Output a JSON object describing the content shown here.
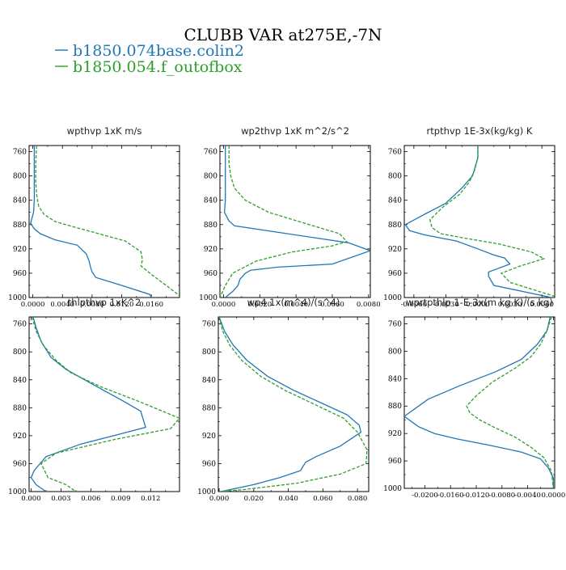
{
  "figure": {
    "title": "CLUBB VAR at275E,-7N",
    "legend": [
      {
        "label": "b1850.074base.colin2",
        "color": "#1f77b4",
        "style": "solid"
      },
      {
        "label": "b1850.054.f_outofbox",
        "color": "#2ca02c",
        "style": "dashed"
      }
    ]
  },
  "chart_data": [
    {
      "type": "line",
      "title": "wpthvp   1xK m/s",
      "ylim": [
        1000,
        750
      ],
      "yticks": [
        760,
        800,
        840,
        880,
        920,
        960,
        1000
      ],
      "xlim": [
        -0.0005,
        0.0198
      ],
      "xticks": [
        0.0,
        0.004,
        0.008,
        0.012,
        0.016
      ],
      "xticklabels": [
        "0.0000",
        "0.0040",
        "0.0080",
        "0.0120",
        "0.0160"
      ],
      "series": [
        {
          "name": "b1850.074base.colin2",
          "points": [
            [
              0.0002,
              750
            ],
            [
              0.0002,
              760
            ],
            [
              0.0002,
              780
            ],
            [
              0.0002,
              800
            ],
            [
              0.0002,
              820
            ],
            [
              0.0002,
              840
            ],
            [
              0.0001,
              860
            ],
            [
              -0.0003,
              878
            ],
            [
              0.0002,
              887
            ],
            [
              0.001,
              895
            ],
            [
              0.003,
              905
            ],
            [
              0.006,
              914
            ],
            [
              0.0072,
              928
            ],
            [
              0.0076,
              940
            ],
            [
              0.0078,
              950
            ],
            [
              0.008,
              958
            ],
            [
              0.0085,
              967
            ],
            [
              0.012,
              980
            ],
            [
              0.0158,
              995
            ],
            [
              0.016,
              1000
            ]
          ]
        },
        {
          "name": "b1850.054.f_outofbox",
          "points": [
            [
              0.0005,
              750
            ],
            [
              0.0004,
              780
            ],
            [
              0.0004,
              810
            ],
            [
              0.0005,
              830
            ],
            [
              0.0008,
              850
            ],
            [
              0.0015,
              863
            ],
            [
              0.003,
              875
            ],
            [
              0.005,
              882
            ],
            [
              0.008,
              892
            ],
            [
              0.0125,
              907
            ],
            [
              0.0146,
              925
            ],
            [
              0.0148,
              938
            ],
            [
              0.0146,
              948
            ],
            [
              0.016,
              962
            ],
            [
              0.018,
              980
            ],
            [
              0.0198,
              997
            ]
          ]
        }
      ]
    },
    {
      "type": "line",
      "title": "wp2thvp   1xK m^2/s^2",
      "ylim": [
        1000,
        750
      ],
      "yticks": [
        760,
        800,
        840,
        880,
        920,
        960,
        1000
      ],
      "xlim": [
        -0.0002,
        0.0081
      ],
      "xticks": [
        0.0,
        0.002,
        0.004,
        0.006,
        0.008
      ],
      "xticklabels": [
        "0.0000",
        "0.0020",
        "0.0040",
        "0.0060",
        "0.0080"
      ],
      "series": [
        {
          "name": "b1850.074base.colin2",
          "points": [
            [
              0.0001,
              750
            ],
            [
              0.0001,
              780
            ],
            [
              0.0001,
              810
            ],
            [
              0.0001,
              840
            ],
            [
              5e-05,
              860
            ],
            [
              0.0003,
              874
            ],
            [
              0.0006,
              882
            ],
            [
              0.0069,
              910
            ],
            [
              0.0081,
              923
            ],
            [
              0.006,
              945
            ],
            [
              0.003,
              950
            ],
            [
              0.0015,
              955
            ],
            [
              0.0012,
              960
            ],
            [
              0.0009,
              970
            ],
            [
              0.0008,
              980
            ],
            [
              0.0005,
              990
            ],
            [
              0.0001,
              1000
            ]
          ]
        },
        {
          "name": "b1850.054.f_outofbox",
          "points": [
            [
              0.0003,
              750
            ],
            [
              0.0003,
              780
            ],
            [
              0.0004,
              800
            ],
            [
              0.0006,
              820
            ],
            [
              0.0012,
              840
            ],
            [
              0.0025,
              860
            ],
            [
              0.0045,
              878
            ],
            [
              0.0064,
              895
            ],
            [
              0.0068,
              908
            ],
            [
              0.006,
              915
            ],
            [
              0.0038,
              925
            ],
            [
              0.0018,
              940
            ],
            [
              0.0005,
              960
            ],
            [
              0.0001,
              980
            ],
            [
              -0.0002,
              1000
            ]
          ]
        }
      ]
    },
    {
      "type": "line",
      "title": "rtpthvp   1E-3x(kg/kg) K",
      "ylim": [
        1000,
        750
      ],
      "yticks": [
        760,
        800,
        840,
        880,
        920,
        960,
        1000
      ],
      "xlim": [
        -0.0069,
        0.0072
      ],
      "xticks": [
        -0.006,
        -0.003,
        0.0,
        0.003,
        0.006
      ],
      "xticklabels": [
        "-0.0060",
        "-0.0030",
        "0.0000",
        "0.0030",
        "0.0060"
      ],
      "series": [
        {
          "name": "b1850.074base.colin2",
          "points": [
            [
              0.0,
              750
            ],
            [
              0.0,
              770
            ],
            [
              -0.0005,
              800
            ],
            [
              -0.0015,
              820
            ],
            [
              -0.003,
              845
            ],
            [
              -0.005,
              863
            ],
            [
              -0.0068,
              880
            ],
            [
              -0.0064,
              890
            ],
            [
              -0.005,
              897
            ],
            [
              -0.002,
              907
            ],
            [
              0.0,
              920
            ],
            [
              0.0015,
              930
            ],
            [
              0.0025,
              935
            ],
            [
              0.003,
              945
            ],
            [
              0.001,
              958
            ],
            [
              0.001,
              965
            ],
            [
              0.0015,
              980
            ],
            [
              0.0069,
              1000
            ]
          ]
        },
        {
          "name": "b1850.054.f_outofbox",
          "points": [
            [
              0.0,
              750
            ],
            [
              0.0,
              770
            ],
            [
              -0.0003,
              790
            ],
            [
              -0.0008,
              810
            ],
            [
              -0.0017,
              830
            ],
            [
              -0.0032,
              850
            ],
            [
              -0.0045,
              872
            ],
            [
              -0.0043,
              885
            ],
            [
              -0.0035,
              895
            ],
            [
              -0.001,
              903
            ],
            [
              0.002,
              912
            ],
            [
              0.005,
              925
            ],
            [
              0.0062,
              936
            ],
            [
              0.004,
              948
            ],
            [
              0.0022,
              960
            ],
            [
              0.003,
              975
            ],
            [
              0.0072,
              998
            ]
          ]
        }
      ]
    },
    {
      "type": "line",
      "title": "thlpthvp   1xK^2",
      "ylim": [
        1000,
        750
      ],
      "yticks": [
        760,
        800,
        840,
        880,
        920,
        960,
        1000
      ],
      "xlim": [
        -0.0002,
        0.0149
      ],
      "xticks": [
        0.0,
        0.003,
        0.006,
        0.009,
        0.012
      ],
      "xticklabels": [
        "0.000",
        "0.003",
        "0.006",
        "0.009",
        "0.012"
      ],
      "series": [
        {
          "name": "b1850.074base.colin2",
          "points": [
            [
              0.0002,
              750
            ],
            [
              0.0005,
              765
            ],
            [
              0.001,
              785
            ],
            [
              0.002,
              808
            ],
            [
              0.0035,
              825
            ],
            [
              0.006,
              845
            ],
            [
              0.0092,
              870
            ],
            [
              0.011,
              885
            ],
            [
              0.0115,
              908
            ],
            [
              0.0088,
              918
            ],
            [
              0.005,
              932
            ],
            [
              0.0015,
              950
            ],
            [
              0.0003,
              970
            ],
            [
              0.0,
              980
            ],
            [
              0.0005,
              990
            ],
            [
              0.0015,
              1000
            ]
          ]
        },
        {
          "name": "b1850.054.f_outofbox",
          "points": [
            [
              0.0001,
              750
            ],
            [
              0.0005,
              770
            ],
            [
              0.0012,
              790
            ],
            [
              0.0025,
              812
            ],
            [
              0.004,
              830
            ],
            [
              0.007,
              850
            ],
            [
              0.011,
              872
            ],
            [
              0.0149,
              895
            ],
            [
              0.014,
              910
            ],
            [
              0.0085,
              925
            ],
            [
              0.0025,
              945
            ],
            [
              0.001,
              960
            ],
            [
              0.0017,
              980
            ],
            [
              0.0035,
              990
            ],
            [
              0.0045,
              1000
            ]
          ]
        }
      ]
    },
    {
      "type": "line",
      "title": "wp4   1x(m^4)/(s^4)",
      "ylim": [
        1000,
        750
      ],
      "yticks": [
        760,
        800,
        840,
        880,
        920,
        960,
        1000
      ],
      "xlim": [
        -0.0005,
        0.0865
      ],
      "xticks": [
        0.0,
        0.02,
        0.04,
        0.06,
        0.08
      ],
      "xticklabels": [
        "0.000",
        "0.020",
        "0.040",
        "0.060",
        "0.080"
      ],
      "series": [
        {
          "name": "b1850.074base.colin2",
          "points": [
            [
              0.0,
              750
            ],
            [
              0.003,
              770
            ],
            [
              0.008,
              790
            ],
            [
              0.016,
              812
            ],
            [
              0.028,
              835
            ],
            [
              0.043,
              855
            ],
            [
              0.058,
              872
            ],
            [
              0.074,
              890
            ],
            [
              0.081,
              905
            ],
            [
              0.082,
              915
            ],
            [
              0.07,
              935
            ],
            [
              0.056,
              950
            ],
            [
              0.05,
              958
            ],
            [
              0.047,
              970
            ],
            [
              0.035,
              980
            ],
            [
              0.02,
              990
            ],
            [
              0.001,
              1000
            ]
          ]
        },
        {
          "name": "b1850.054.f_outofbox",
          "points": [
            [
              0.0,
              750
            ],
            [
              0.002,
              770
            ],
            [
              0.006,
              790
            ],
            [
              0.013,
              812
            ],
            [
              0.024,
              835
            ],
            [
              0.038,
              855
            ],
            [
              0.055,
              875
            ],
            [
              0.072,
              895
            ],
            [
              0.08,
              915
            ],
            [
              0.0855,
              940
            ],
            [
              0.085,
              960
            ],
            [
              0.07,
              975
            ],
            [
              0.045,
              988
            ],
            [
              0.015,
              997
            ],
            [
              0.0,
              1000
            ]
          ]
        }
      ]
    },
    {
      "type": "line",
      "title": "wprtpthlp   1-E-3x(m kg K)/(s kg)",
      "ylim": [
        1000,
        750
      ],
      "yticks": [
        760,
        800,
        840,
        880,
        920,
        960,
        1000
      ],
      "xlim": [
        -0.0232,
        0.0002
      ],
      "xticks": [
        -0.02,
        -0.016,
        -0.012,
        -0.008,
        -0.004,
        0.0
      ],
      "xticklabels": [
        "-0.0200",
        "-0.0160",
        "-0.0120",
        "-0.0080",
        "-0.0040",
        "0.0000"
      ],
      "series": [
        {
          "name": "b1850.074base.colin2",
          "points": [
            [
              -0.0005,
              750
            ],
            [
              -0.001,
              770
            ],
            [
              -0.0025,
              790
            ],
            [
              -0.005,
              812
            ],
            [
              -0.009,
              830
            ],
            [
              -0.0145,
              850
            ],
            [
              -0.0195,
              870
            ],
            [
              -0.0232,
              895
            ],
            [
              -0.021,
              910
            ],
            [
              -0.0185,
              920
            ],
            [
              -0.015,
              928
            ],
            [
              -0.01,
              937
            ],
            [
              -0.005,
              947
            ],
            [
              -0.002,
              957
            ],
            [
              -0.0008,
              970
            ],
            [
              0.0,
              985
            ],
            [
              0.0,
              1000
            ]
          ]
        },
        {
          "name": "b1850.054.f_outofbox",
          "points": [
            [
              -0.0003,
              750
            ],
            [
              -0.001,
              770
            ],
            [
              -0.002,
              790
            ],
            [
              -0.0035,
              808
            ],
            [
              -0.006,
              825
            ],
            [
              -0.0095,
              845
            ],
            [
              -0.012,
              865
            ],
            [
              -0.0135,
              880
            ],
            [
              -0.013,
              890
            ],
            [
              -0.0115,
              900
            ],
            [
              -0.009,
              912
            ],
            [
              -0.006,
              925
            ],
            [
              -0.0035,
              940
            ],
            [
              -0.0015,
              955
            ],
            [
              -0.0003,
              975
            ],
            [
              0.0,
              1000
            ]
          ]
        }
      ]
    }
  ]
}
